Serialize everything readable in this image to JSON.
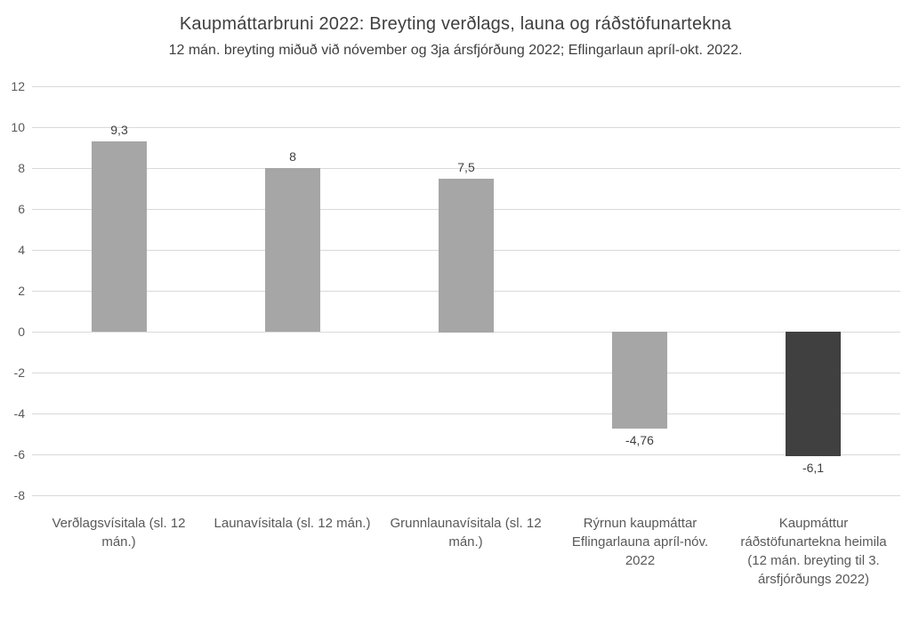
{
  "chart_data": {
    "type": "bar",
    "title": "Kaupmáttarbruni 2022: Breyting verðlags, launa og ráðstöfunartekna",
    "subtitle": "12 mán. breyting miðuð við nóvember og 3ja ársfjórðung 2022; Eflingarlaun apríl-okt. 2022.",
    "categories": [
      "Verðlagsvísitala (sl. 12 mán.)",
      "Launavísitala (sl. 12 mán.)",
      "Grunnlaunavísitala (sl. 12 mán.)",
      "Rýrnun kaupmáttar Eflingarlauna apríl-nóv. 2022",
      "Kaupmáttur ráðstöfunartekna heimila (12 mán. breyting til 3. ársfjórðungs 2022)"
    ],
    "values": [
      9.3,
      8,
      7.5,
      -4.76,
      -6.1
    ],
    "value_labels": [
      "9,3",
      "8",
      "7,5",
      "-4,76",
      "-6,1"
    ],
    "bar_colors": [
      "#a6a6a6",
      "#a6a6a6",
      "#a6a6a6",
      "#a6a6a6",
      "#404040"
    ],
    "ylim": [
      -8,
      12
    ],
    "ytick_step": 2,
    "ytick_labels": [
      "12",
      "10",
      "8",
      "6",
      "4",
      "2",
      "0",
      "-2",
      "-4",
      "-6",
      "-8"
    ],
    "xlabel": "",
    "ylabel": "",
    "grid": true,
    "gridline_color": "#d9d9d9",
    "axis_text_color": "#595959",
    "legend": "none"
  }
}
